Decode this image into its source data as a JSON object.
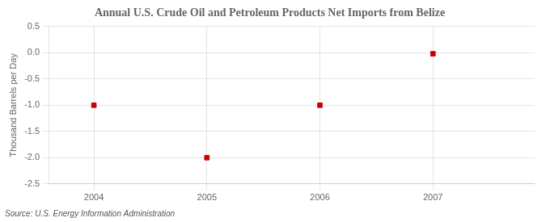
{
  "chart_data": {
    "type": "scatter",
    "title": "Annual U.S. Crude Oil and Petroleum Products Net Imports from Belize",
    "y_label": "Thousand Barrels per Day",
    "source": "Source: U.S. Energy Information Administration",
    "x": [
      2004,
      2005,
      2006,
      2007
    ],
    "values": [
      -1.0,
      -2.0,
      -1.0,
      -0.02
    ],
    "color": "#cc0000",
    "marker": "square",
    "xlim": [
      2003.6,
      2007.9
    ],
    "ylim": [
      -2.5,
      0.5
    ],
    "xticks": [
      2004,
      2005,
      2006,
      2007
    ],
    "yticks": [
      0.5,
      {
        "value": 0.0,
        "label": "0.0"
      },
      -0.5,
      {
        "value": -1.0,
        "label": "-1.0"
      },
      -1.5,
      {
        "value": -2.0,
        "label": "-2.0"
      },
      -2.5
    ],
    "grid": true
  }
}
